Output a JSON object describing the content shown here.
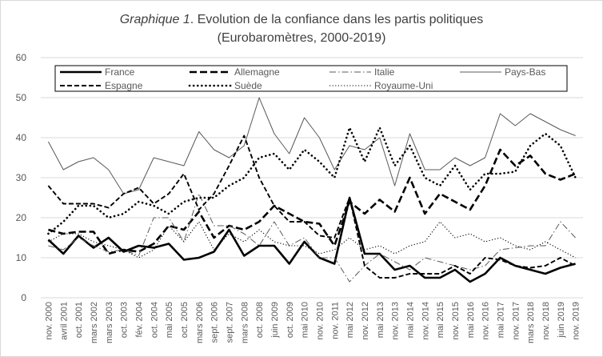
{
  "chart_data": {
    "type": "line",
    "title_prefix": "Graphique 1",
    "title_rest": ". Evolution de la confiance dans les partis politiques",
    "subtitle": "(Eurobaromètres, 2000-2019)",
    "ylim": [
      0,
      60
    ],
    "y_ticks": [
      "0",
      "10",
      "20",
      "30",
      "40",
      "50",
      "60"
    ],
    "grid": "horizontal",
    "legend_position": "top",
    "categories": [
      "nov. 2000",
      "avril 2001",
      "oct. 2001",
      "mars 2002",
      "mars 2003",
      "oct. 2003",
      "fév. 2004",
      "oct. 2004",
      "mai 2005",
      "oct. 2005",
      "mars 2006",
      "sept. 2006",
      "sept. 2007",
      "mars 2008",
      "oct. 2008",
      "juin 2009",
      "oct. 2009",
      "mai 2010",
      "nov. 2010",
      "nov. 2011",
      "mai 2012",
      "nov. 2012",
      "mai 2013",
      "nov. 2013",
      "mai 2014",
      "nov. 2014",
      "mai 2015",
      "nov. 2015",
      "mai 2016",
      "nov. 2016",
      "mai 2017",
      "nov. 2017",
      "mars 2018",
      "nov. 2018",
      "juin 2019",
      "nov. 2019"
    ],
    "series": [
      {
        "name": "France",
        "style": "solid-thick",
        "values": [
          14.5,
          11,
          15.5,
          12.5,
          15,
          11.5,
          13,
          12.5,
          13.5,
          9.5,
          10,
          11.5,
          17,
          10.5,
          13,
          13,
          8.5,
          14,
          10,
          8.5,
          25,
          11,
          11,
          7,
          8,
          5,
          5,
          7,
          4,
          6,
          10,
          8,
          7,
          6,
          7.5,
          8.5
        ]
      },
      {
        "name": "Allemagne",
        "style": "dash-thick",
        "values": [
          17,
          16,
          16.5,
          16.5,
          11,
          12,
          11.5,
          13.5,
          18,
          17,
          21.5,
          15,
          18,
          17,
          19,
          23,
          21,
          19,
          18.5,
          13,
          24,
          21,
          24.5,
          21.5,
          30,
          21,
          26,
          24,
          22,
          28,
          37,
          33,
          35.5,
          31,
          29.5,
          31
        ]
      },
      {
        "name": "Italie",
        "style": "dash-dot",
        "values": [
          13,
          12,
          15,
          13,
          11.5,
          12,
          10.5,
          20,
          20,
          14,
          26,
          18,
          18,
          16,
          13,
          19,
          13,
          15,
          10,
          10,
          4,
          8,
          11,
          9,
          7,
          10,
          9,
          8,
          7,
          8,
          12,
          12.5,
          13,
          13,
          19,
          15
        ]
      },
      {
        "name": "Pays-Bas",
        "style": "thin",
        "values": [
          39,
          32,
          34,
          35,
          32,
          26,
          27,
          35,
          34,
          33,
          41.5,
          37,
          35,
          38,
          50,
          41,
          36,
          45,
          40,
          32,
          38,
          37,
          40,
          28,
          41,
          32,
          32,
          35,
          33,
          35,
          46,
          43,
          46,
          44,
          42,
          40.5
        ]
      },
      {
        "name": "Espagne",
        "style": "dash",
        "values": [
          28,
          23.5,
          23.5,
          23.5,
          22.5,
          26,
          27.5,
          23.5,
          26,
          31,
          22,
          26,
          33,
          40.5,
          30,
          23,
          19,
          19,
          15.5,
          15,
          25,
          8,
          5,
          5,
          6,
          6,
          6,
          8,
          6,
          10,
          9.5,
          8,
          7.5,
          8,
          10,
          8
        ]
      },
      {
        "name": "Suède",
        "style": "dot-thick",
        "values": [
          16,
          19,
          23,
          23,
          20,
          21,
          24,
          23,
          21,
          24,
          25,
          25,
          28,
          30,
          35,
          36,
          32,
          37,
          34,
          30,
          42.5,
          34,
          42.5,
          33,
          38,
          30,
          28,
          33,
          27,
          31,
          31,
          31.5,
          38,
          41,
          38,
          30
        ]
      },
      {
        "name": "Royaume-Uni",
        "style": "dot",
        "values": [
          14,
          16,
          16,
          14,
          13,
          12,
          10,
          12,
          18,
          14,
          19,
          12,
          16,
          14,
          17,
          14,
          13,
          13,
          11,
          12,
          15,
          12,
          13,
          11,
          13,
          14,
          19,
          15,
          16,
          14,
          15,
          13,
          12,
          14,
          12,
          10
        ]
      }
    ]
  }
}
